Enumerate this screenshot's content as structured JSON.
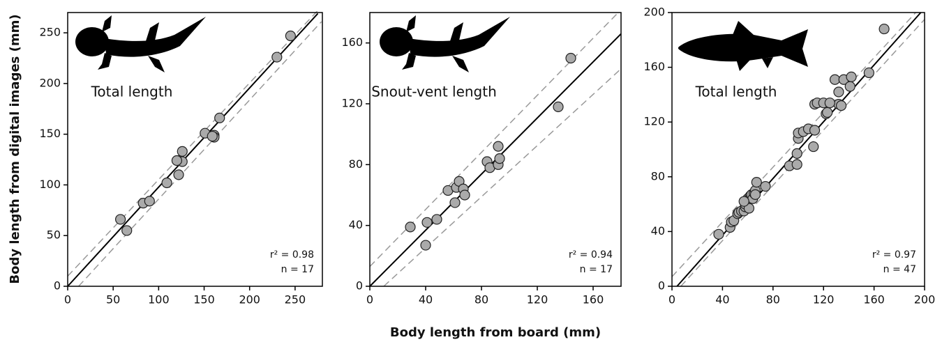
{
  "chart_data": [
    {
      "type": "scatter",
      "annotation": "Total length",
      "stats": [
        "r² = 0.98",
        "n = 17"
      ],
      "xlim": [
        0,
        280
      ],
      "ylim": [
        0,
        270
      ],
      "xticks": [
        0,
        50,
        100,
        150,
        200,
        250
      ],
      "yticks": [
        0,
        50,
        100,
        150,
        200,
        250
      ],
      "color": "#aaaaaa",
      "x": [
        58,
        65,
        83,
        90,
        109,
        122,
        122,
        126,
        126,
        151,
        161,
        161,
        167,
        230,
        245,
        120,
        159
      ],
      "y": [
        66,
        55,
        82,
        84,
        102,
        110,
        124,
        133,
        123,
        151,
        149,
        147,
        166,
        226,
        247,
        124,
        148
      ],
      "lines": [
        {
          "style": "solid",
          "x": [
            0,
            275
          ],
          "y": [
            0,
            269
          ]
        },
        {
          "style": "dashed",
          "x": [
            0,
            275
          ],
          "y": [
            10,
            272
          ]
        },
        {
          "style": "dashed",
          "x": [
            12,
            279
          ],
          "y": [
            0,
            261
          ]
        }
      ]
    },
    {
      "type": "scatter",
      "annotation": "Snout-vent length",
      "stats": [
        "r² = 0.94",
        "n = 17"
      ],
      "xlim": [
        0,
        180
      ],
      "ylim": [
        0,
        180
      ],
      "xticks": [
        0,
        40,
        80,
        120,
        160
      ],
      "yticks": [
        0,
        40,
        80,
        120,
        160
      ],
      "color": "#aaaaaa",
      "x": [
        29,
        40,
        41,
        48,
        56,
        61,
        62,
        64,
        67,
        68,
        84,
        86,
        92,
        92,
        93,
        135,
        144
      ],
      "y": [
        39,
        27,
        42,
        44,
        63,
        55,
        65,
        69,
        64,
        60,
        82,
        78,
        92,
        80,
        84,
        118,
        150
      ],
      "lines": [
        {
          "style": "solid",
          "x": [
            0,
            180
          ],
          "y": [
            0,
            166
          ]
        },
        {
          "style": "dashed",
          "x": [
            0,
            178
          ],
          "y": [
            13,
            180
          ]
        },
        {
          "style": "dashed",
          "x": [
            10,
            180
          ],
          "y": [
            0,
            143
          ]
        }
      ]
    },
    {
      "type": "scatter",
      "annotation": "Total length",
      "stats": [
        "r² = 0.97",
        "n = 47"
      ],
      "xlim": [
        0,
        200
      ],
      "ylim": [
        0,
        200
      ],
      "xticks": [
        0,
        40,
        80,
        120,
        160,
        200
      ],
      "yticks": [
        0,
        40,
        80,
        120,
        160,
        200
      ],
      "color": "#aaaaaa",
      "x": [
        37,
        46,
        47,
        49,
        52,
        53,
        55,
        57,
        58,
        58,
        59,
        60,
        61,
        62,
        62,
        63,
        64,
        65,
        66,
        67,
        74,
        93,
        99,
        99,
        100,
        100,
        104,
        108,
        112,
        113,
        113,
        115,
        120,
        122,
        123,
        129,
        132,
        132,
        134,
        136,
        141,
        142,
        156,
        168,
        125,
        57,
        66
      ],
      "y": [
        38,
        43,
        47,
        48,
        53,
        54,
        55,
        55,
        58,
        60,
        62,
        64,
        57,
        66,
        64,
        67,
        64,
        68,
        70,
        76,
        73,
        88,
        89,
        97,
        108,
        112,
        113,
        115,
        102,
        114,
        133,
        134,
        134,
        126,
        127,
        151,
        133,
        142,
        132,
        151,
        146,
        153,
        156,
        188,
        134,
        62,
        67
      ],
      "lines": [
        {
          "style": "solid",
          "x": [
            4,
            197
          ],
          "y": [
            0,
            200
          ]
        },
        {
          "style": "dashed",
          "x": [
            0,
            193
          ],
          "y": [
            7,
            200
          ]
        },
        {
          "style": "dashed",
          "x": [
            7,
            200
          ],
          "y": [
            0,
            195
          ]
        }
      ]
    }
  ],
  "xlabel": "Body length from board (mm)",
  "ylabel": "Body length from digital images (mm)"
}
